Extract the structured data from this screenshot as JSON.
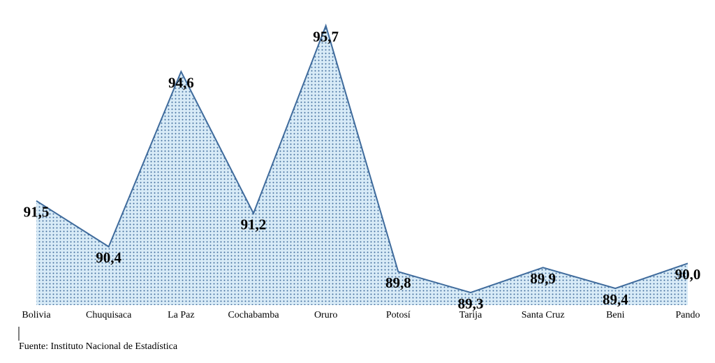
{
  "chart_data": {
    "type": "area",
    "categories": [
      "Bolivia",
      "Chuquisaca",
      "La Paz",
      "Cochabamba",
      "Oruro",
      "Potosí",
      "Tarija",
      "Santa Cruz",
      "Beni",
      "Pando"
    ],
    "values": [
      91.5,
      90.4,
      94.6,
      91.2,
      95.7,
      89.8,
      89.3,
      89.9,
      89.4,
      90.0
    ],
    "value_labels": [
      "91,5",
      "90,4",
      "94,6",
      "91,2",
      "95,7",
      "89,8",
      "89,3",
      "89,9",
      "89,4",
      "90,0"
    ],
    "color": "#3f6b9c",
    "ylim": [
      89,
      96
    ],
    "source": "Fuente: Instituto Nacional de Estadística"
  }
}
